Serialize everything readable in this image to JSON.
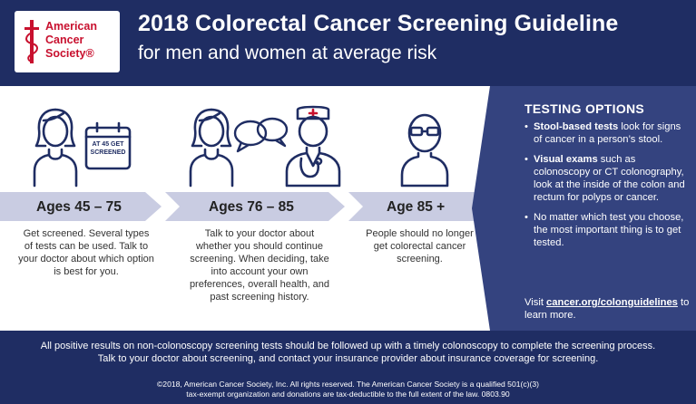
{
  "logo": {
    "line1": "American",
    "line2": "Cancer",
    "line3": "Society®"
  },
  "header": {
    "title": "2018 Colorectal Cancer Screening Guideline",
    "subtitle": "for men and women at average risk"
  },
  "stages": [
    {
      "age": "Ages 45 – 75",
      "calendar_label_1": "AT 45 GET",
      "calendar_label_2": "SCREENED",
      "text": "Get screened. Several types of tests can be used. Talk to your doctor about which option is best for you."
    },
    {
      "age": "Ages 76 – 85",
      "text": "Talk to your doctor about whether you should continue screening. When deciding, take into account your own preferences, overall health, and past screening history."
    },
    {
      "age": "Age 85 +",
      "text": "People should no longer get colorectal cancer screening."
    }
  ],
  "testing": {
    "title": "TESTING OPTIONS",
    "item1_bold": "Stool-based tests",
    "item1_rest": " look for signs of cancer in a person’s stool.",
    "item2_bold": "Visual exams",
    "item2_rest": " such as colonoscopy or CT colonography, look at the inside of the colon and rectum for polyps or cancer.",
    "item3": "No matter which test you choose, the most important thing is to get tested.",
    "visit_prefix": "Visit ",
    "visit_link": "cancer.org/colonguidelines",
    "visit_suffix": " to learn more."
  },
  "footer": {
    "line1": "All positive results on non-colonoscopy screening tests should be followed up with a timely colonoscopy to complete the screening process.",
    "line2": "Talk to your doctor about screening, and contact your insurance provider about insurance coverage for screening.",
    "copy1": "©2018, American Cancer Society, Inc. All rights reserved. The American Cancer Society is a qualified 501(c)(3)",
    "copy2": "tax-exempt organization and donations are tax-deductible to the full extent of the law. 0803.90"
  },
  "colors": {
    "navy": "#1f2d63",
    "panel": "#34437f",
    "band": "#c9cce2",
    "brand_red": "#c8102e"
  }
}
